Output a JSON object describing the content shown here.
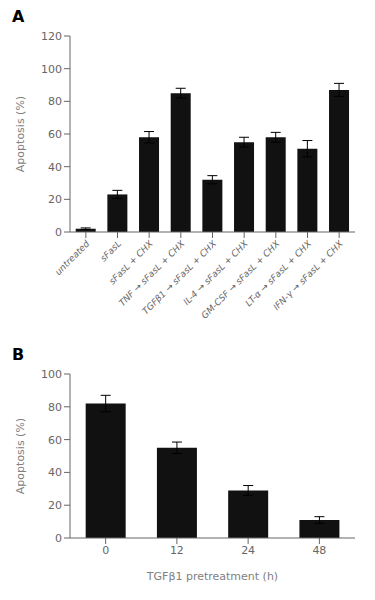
{
  "chart_data": [
    {
      "type": "bar",
      "title": "A",
      "categories": [
        "untreated",
        "sFasL",
        "sFasL + CHX",
        "TNF → sFasL + CHX",
        "TGFβ1 → sFasL + CHX",
        "IL-4 → sFasL + CHX",
        "GM-CSF → sFasL + CHX",
        "LT-α → sFasL + CHX",
        "IFN-γ → sFasL + CHX"
      ],
      "values": [
        2,
        23,
        58,
        85,
        32,
        55,
        58,
        51,
        87
      ],
      "errors": [
        0.5,
        2.5,
        3.5,
        3.0,
        2.5,
        3.0,
        3.0,
        5.0,
        4.0
      ],
      "ylabel": "Apoptosis (%)",
      "ylim": [
        0,
        120
      ],
      "yticks": [
        0,
        20,
        40,
        60,
        80,
        100,
        120
      ],
      "color": "#111111",
      "grid": false
    },
    {
      "type": "bar",
      "title": "B",
      "categories": [
        "0",
        "12",
        "24",
        "48"
      ],
      "values": [
        82,
        55,
        29,
        11
      ],
      "errors": [
        5.0,
        3.5,
        3.0,
        2.0
      ],
      "ylabel": "Apoptosis (%)",
      "xlabel": "TGFβ1 pretreatment (h)",
      "ylim": [
        0,
        100
      ],
      "yticks": [
        0,
        20,
        40,
        60,
        80,
        100
      ],
      "color": "#111111",
      "grid": false
    }
  ]
}
